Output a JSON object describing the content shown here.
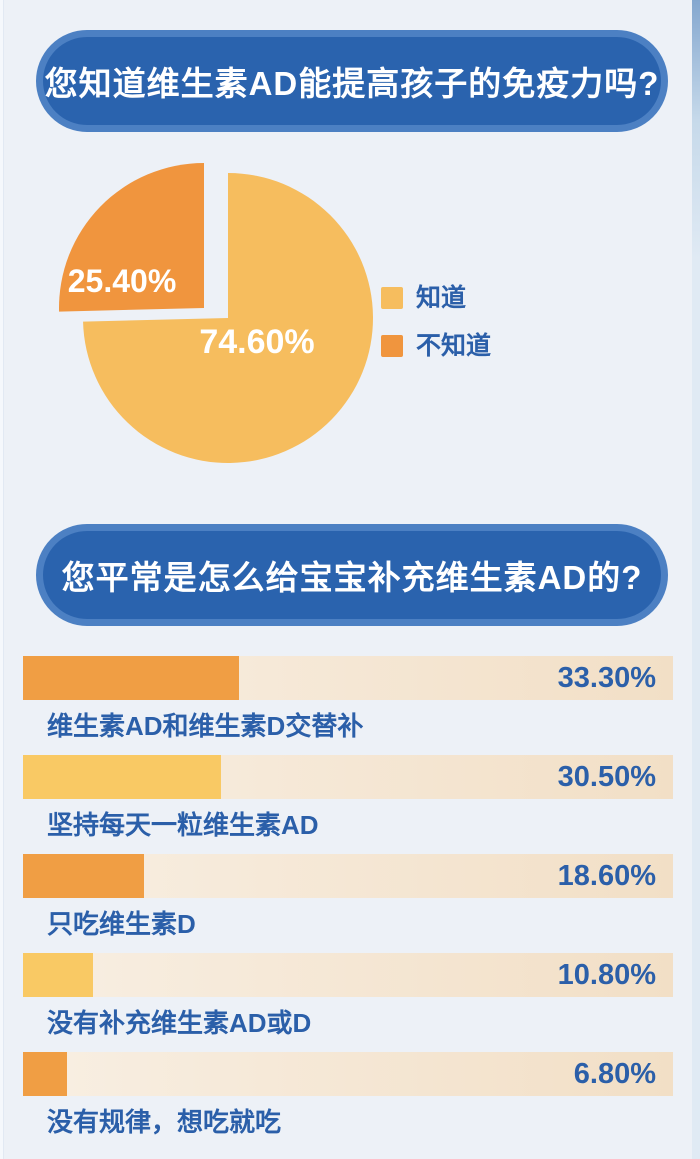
{
  "page": {
    "background": "#edf1f7",
    "banner_fill": "#2a63ae",
    "banner_border": "#4c80c3",
    "text_color": "#2b5fa9"
  },
  "chart_data": [
    {
      "type": "pie",
      "title": "您知道维生素AD能提高孩子的免疫力吗?",
      "legend_position": "right",
      "label_color": "#ffffff",
      "exploded": "不知道",
      "series": [
        {
          "label": "知道",
          "value": 74.6,
          "value_label": "74.60%",
          "color": "#f6bd5e"
        },
        {
          "label": "不知道",
          "value": 25.4,
          "value_label": "25.40%",
          "color": "#f0953e"
        }
      ]
    },
    {
      "type": "bar",
      "orientation": "horizontal",
      "title": "您平常是怎么给宝宝补充维生素AD的?",
      "xlim": [
        0,
        100
      ],
      "track_colors": [
        "#f8efe3",
        "#f2dfc6"
      ],
      "bars": [
        {
          "label": "维生素AD和维生素D交替补",
          "value": 33.3,
          "value_label": "33.30%",
          "color": "#f09e44"
        },
        {
          "label": "坚持每天一粒维生素AD",
          "value": 30.5,
          "value_label": "30.50%",
          "color": "#f9c964"
        },
        {
          "label": "只吃维生素D",
          "value": 18.6,
          "value_label": "18.60%",
          "color": "#f09e44"
        },
        {
          "label": "没有补充维生素AD或D",
          "value": 10.8,
          "value_label": "10.80%",
          "color": "#f9c964"
        },
        {
          "label": "没有规律，想吃就吃",
          "value": 6.8,
          "value_label": "6.80%",
          "color": "#f09e44"
        }
      ]
    }
  ]
}
